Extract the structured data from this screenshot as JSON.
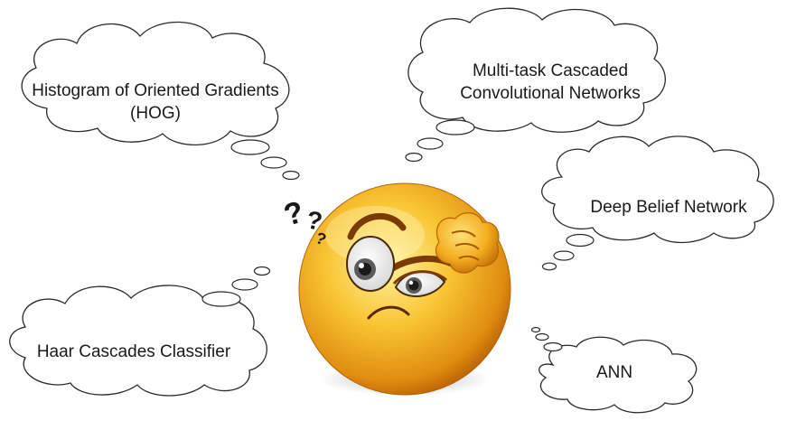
{
  "diagram": {
    "thoughts": [
      {
        "id": "hog",
        "lines": [
          "Histogram of Oriented Gradients",
          "(HOG)"
        ]
      },
      {
        "id": "mtcnn",
        "lines": [
          "Multi-task Cascaded",
          "Convolutional Networks"
        ]
      },
      {
        "id": "dbn",
        "lines": [
          "Deep Belief Network"
        ]
      },
      {
        "id": "haar",
        "lines": [
          "Haar Cascades Classifier"
        ]
      },
      {
        "id": "ann",
        "lines": [
          "ANN"
        ]
      }
    ],
    "center_figure": {
      "icon": "thinking-emoji-icon",
      "symbol": "?"
    }
  },
  "colors": {
    "face_light": "#ffe27a",
    "face_mid": "#f7b823",
    "face_dark": "#c46e06",
    "outline": "#2a2a2a"
  }
}
